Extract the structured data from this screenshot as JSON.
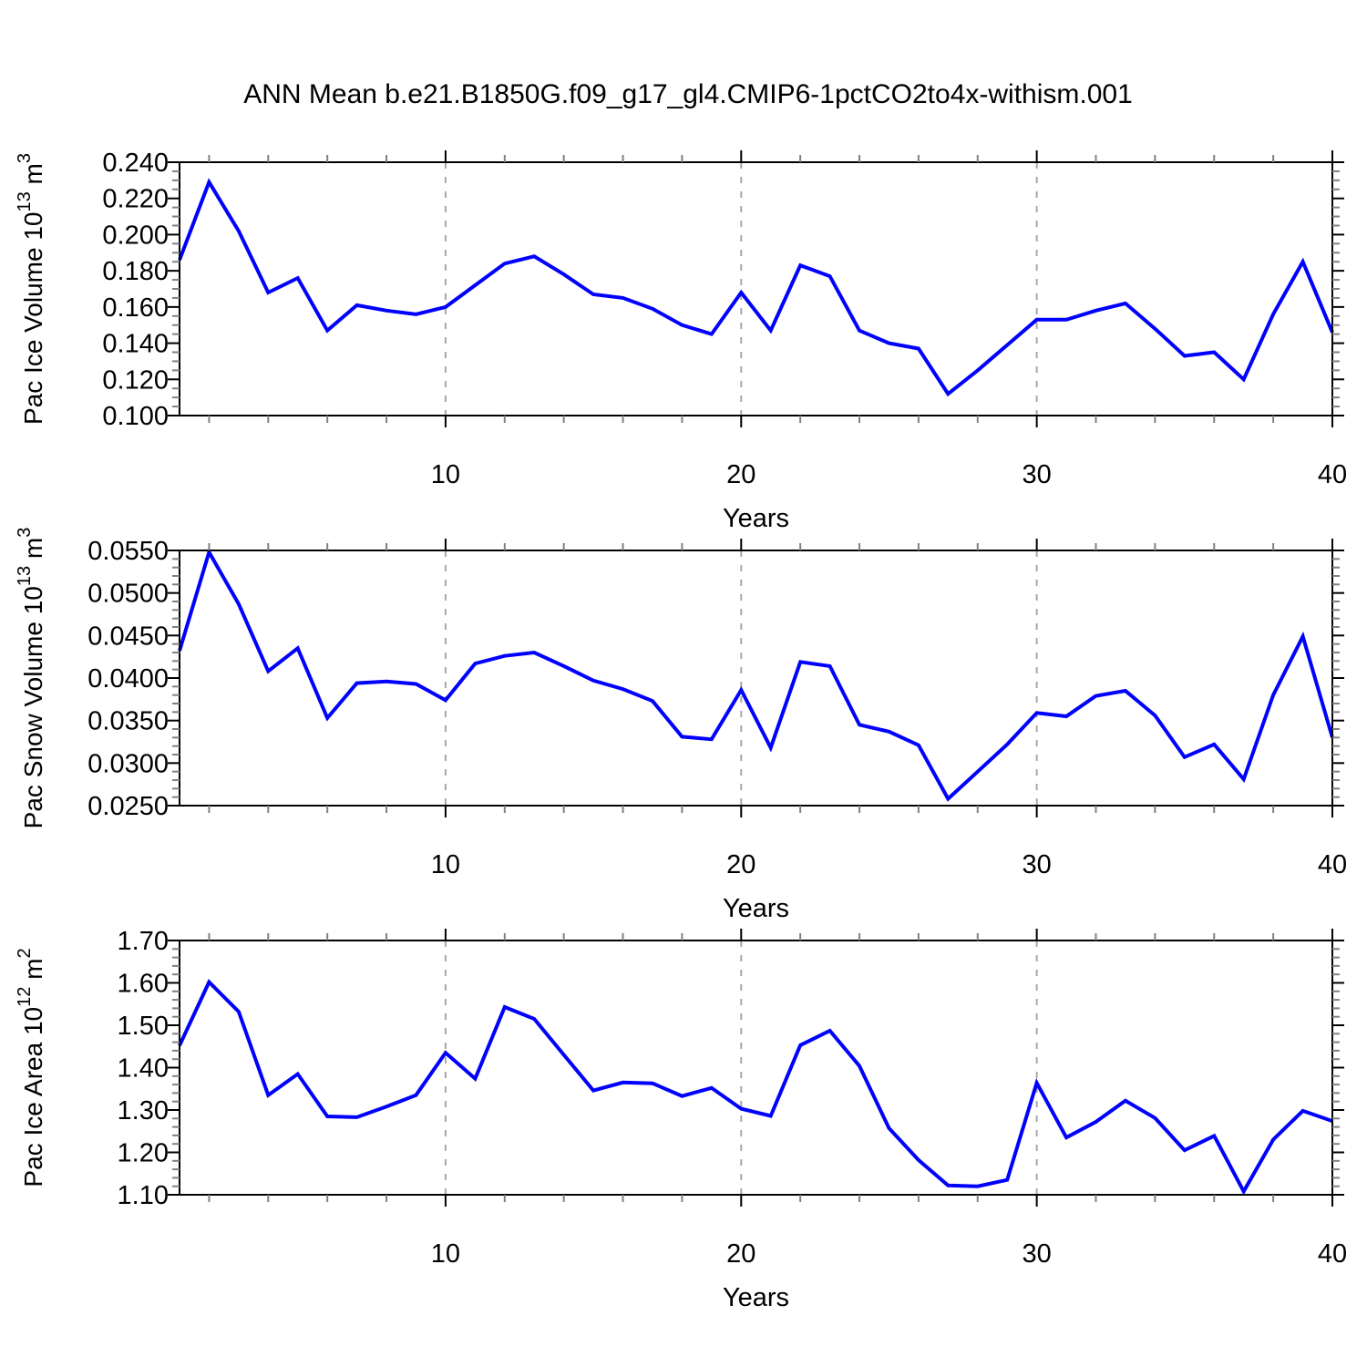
{
  "title": "ANN Mean b.e21.B1850G.f09_g17_gl4.CMIP6-1pctCO2to4x-withism.001",
  "colors": {
    "line": "#0000ff",
    "axis": "#000000",
    "minor_tick": "#808080",
    "gridline": "#a8a8a8",
    "background": "#ffffff",
    "text": "#000000"
  },
  "x_axis": {
    "label": "Years",
    "year_start": 1,
    "year_end": 40,
    "major_ticks": [
      10,
      20,
      30,
      40
    ],
    "major_tick_labels": [
      "10",
      "20",
      "30",
      "40"
    ],
    "minor_tick_step": 2,
    "dashed_gridlines_at": [
      10,
      20,
      30
    ]
  },
  "chart_data": [
    {
      "type": "line",
      "name": "pac-ice-volume",
      "ylabel": "Pac Ice Volume 10^13 m^3",
      "ylabel_parts": [
        {
          "text": "Pac Ice Volume 10"
        },
        {
          "text": "13",
          "sup": true
        },
        {
          "text": " m"
        },
        {
          "text": "3",
          "sup": true
        }
      ],
      "xlabel": "Years",
      "ylim": [
        0.1,
        0.24
      ],
      "y_major_step": 0.02,
      "y_minor_divisions": 4,
      "y_tick_labels": [
        "0.240",
        "0.220",
        "0.200",
        "0.180",
        "0.160",
        "0.140",
        "0.120",
        "0.100"
      ],
      "x": [
        1,
        2,
        3,
        4,
        5,
        6,
        7,
        8,
        9,
        10,
        11,
        12,
        13,
        14,
        15,
        16,
        17,
        18,
        19,
        20,
        21,
        22,
        23,
        24,
        25,
        26,
        27,
        28,
        29,
        30,
        31,
        32,
        33,
        34,
        35,
        36,
        37,
        38,
        39,
        40
      ],
      "values": [
        0.186,
        0.229,
        0.202,
        0.168,
        0.176,
        0.147,
        0.161,
        0.158,
        0.156,
        0.16,
        0.172,
        0.184,
        0.188,
        0.178,
        0.167,
        0.165,
        0.159,
        0.15,
        0.145,
        0.168,
        0.147,
        0.183,
        0.177,
        0.147,
        0.14,
        0.137,
        0.112,
        0.125,
        0.139,
        0.153,
        0.153,
        0.158,
        0.162,
        0.148,
        0.133,
        0.135,
        0.12,
        0.156,
        0.185,
        0.146
      ]
    },
    {
      "type": "line",
      "name": "pac-snow-volume",
      "ylabel": "Pac Snow Volume 10^13 m^3",
      "ylabel_parts": [
        {
          "text": "Pac Snow Volume 10"
        },
        {
          "text": "13",
          "sup": true
        },
        {
          "text": " m"
        },
        {
          "text": "3",
          "sup": true
        }
      ],
      "xlabel": "Years",
      "ylim": [
        0.025,
        0.055
      ],
      "y_major_step": 0.005,
      "y_minor_divisions": 5,
      "y_tick_labels": [
        "0.0550",
        "0.0500",
        "0.0450",
        "0.0400",
        "0.0350",
        "0.0300",
        "0.0250"
      ],
      "x": [
        1,
        2,
        3,
        4,
        5,
        6,
        7,
        8,
        9,
        10,
        11,
        12,
        13,
        14,
        15,
        16,
        17,
        18,
        19,
        20,
        21,
        22,
        23,
        24,
        25,
        26,
        27,
        28,
        29,
        30,
        31,
        32,
        33,
        34,
        35,
        36,
        37,
        38,
        39,
        40
      ],
      "values": [
        0.0432,
        0.0548,
        0.0487,
        0.0408,
        0.0435,
        0.0353,
        0.0394,
        0.0396,
        0.0393,
        0.0374,
        0.0417,
        0.0426,
        0.043,
        0.0414,
        0.0397,
        0.0387,
        0.0373,
        0.0331,
        0.0328,
        0.0386,
        0.0318,
        0.0419,
        0.0414,
        0.0345,
        0.0337,
        0.0321,
        0.0258,
        0.029,
        0.0322,
        0.0359,
        0.0355,
        0.0379,
        0.0385,
        0.0356,
        0.0307,
        0.0322,
        0.0281,
        0.038,
        0.0449,
        0.033
      ]
    },
    {
      "type": "line",
      "name": "pac-ice-area",
      "ylabel": "Pac Ice Area 10^12 m^2",
      "ylabel_parts": [
        {
          "text": "Pac Ice Area 10"
        },
        {
          "text": "12",
          "sup": true
        },
        {
          "text": " m"
        },
        {
          "text": "2",
          "sup": true
        }
      ],
      "xlabel": "Years",
      "ylim": [
        1.1,
        1.7
      ],
      "y_major_step": 0.1,
      "y_minor_divisions": 5,
      "y_tick_labels": [
        "1.70",
        "1.60",
        "1.50",
        "1.40",
        "1.30",
        "1.20",
        "1.10"
      ],
      "x": [
        1,
        2,
        3,
        4,
        5,
        6,
        7,
        8,
        9,
        10,
        11,
        12,
        13,
        14,
        15,
        16,
        17,
        18,
        19,
        20,
        21,
        22,
        23,
        24,
        25,
        26,
        27,
        28,
        29,
        30,
        31,
        32,
        33,
        34,
        35,
        36,
        37,
        38,
        39,
        40
      ],
      "values": [
        1.452,
        1.602,
        1.532,
        1.335,
        1.385,
        1.285,
        1.283,
        1.308,
        1.335,
        1.435,
        1.374,
        1.543,
        1.515,
        1.43,
        1.346,
        1.365,
        1.363,
        1.333,
        1.352,
        1.303,
        1.286,
        1.453,
        1.487,
        1.404,
        1.257,
        1.182,
        1.122,
        1.12,
        1.135,
        1.364,
        1.235,
        1.272,
        1.322,
        1.281,
        1.205,
        1.239,
        1.108,
        1.23,
        1.298,
        1.274
      ]
    }
  ]
}
